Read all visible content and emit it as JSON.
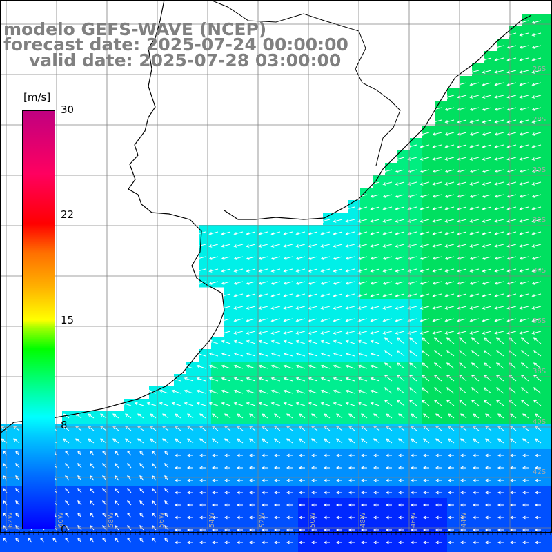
{
  "title": {
    "line1": "modelo GEFS-WAVE (NCEP)",
    "line2": "forecast date: 2025-07-24 00:00:00",
    "line3": "valid date: 2025-07-28 03:00:00"
  },
  "colorbar": {
    "unit": "[m/s]",
    "ticks": [
      "30",
      "22",
      "15",
      "8",
      "0"
    ],
    "min": 0,
    "max": 30
  },
  "map_labels": {
    "lat_labels": [
      "26S",
      "28S",
      "30S",
      "32S",
      "34S",
      "36S",
      "38S",
      "40S",
      "42S"
    ],
    "lon_labels": [
      "62W",
      "60W",
      "58W",
      "56W",
      "54W",
      "52W",
      "50W",
      "48W",
      "46W",
      "44W"
    ]
  },
  "colors": {
    "land": "#ffffff",
    "grid": "#808080",
    "coast": "#000000",
    "arrow": "#ffffff"
  }
}
